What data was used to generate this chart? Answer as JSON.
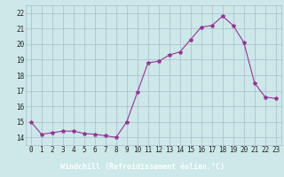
{
  "hours": [
    0,
    1,
    2,
    3,
    4,
    5,
    6,
    7,
    8,
    9,
    10,
    11,
    12,
    13,
    14,
    15,
    16,
    17,
    18,
    19,
    20,
    21,
    22,
    23
  ],
  "values": [
    15.0,
    14.2,
    14.3,
    14.4,
    14.4,
    14.25,
    14.2,
    14.1,
    14.0,
    15.0,
    16.9,
    18.8,
    18.9,
    19.3,
    19.5,
    20.3,
    21.1,
    21.2,
    21.8,
    21.2,
    20.1,
    17.5,
    16.6,
    16.5
  ],
  "line_color": "#993399",
  "marker": "*",
  "marker_size": 3,
  "bg_color": "#cce8e8",
  "grid_color": "#aabbcc",
  "xlabel": "Windchill (Refroidissement éolien,°C)",
  "xlabel_bg": "#7744aa",
  "xlabel_color": "#ffffff",
  "ylim": [
    13.5,
    22.5
  ],
  "yticks": [
    14,
    15,
    16,
    17,
    18,
    19,
    20,
    21,
    22
  ],
  "xlim": [
    -0.5,
    23.5
  ],
  "tick_fontsize": 5.5,
  "label_fontsize": 6.0
}
